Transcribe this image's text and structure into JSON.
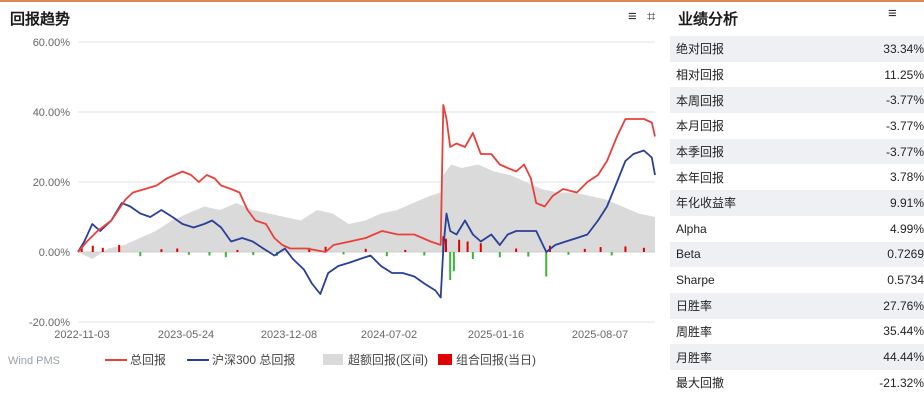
{
  "header": {
    "title": "回报趋势",
    "menu_icon": "menu-icon",
    "crop_icon": "crop-icon"
  },
  "footer": {
    "watermark": "Wind PMS"
  },
  "legend": [
    {
      "label": "总回报",
      "color": "#e8413c",
      "kind": "line"
    },
    {
      "label": "沪深300 总回报",
      "color": "#2a3f96",
      "kind": "line"
    },
    {
      "label": "超额回报(区间)",
      "color": "#dadada",
      "kind": "area"
    },
    {
      "label": "组合回报(当日)",
      "color": "#e00000",
      "kind": "box"
    }
  ],
  "chart_data": {
    "type": "line",
    "x_ticks": [
      "2022-11-03",
      "2023-05-24",
      "2023-12-08",
      "2024-07-02",
      "2025-01-16",
      "2025-08-07"
    ],
    "y_ticks": [
      "60.00%",
      "40.00%",
      "20.00%",
      "0.00%",
      "-20.00%"
    ],
    "ylim": [
      -20,
      60
    ],
    "xlim": [
      "2022-11-03",
      "2025-10-31"
    ],
    "grid": true,
    "legend_position": "bottom",
    "series": [
      {
        "name": "总回报",
        "color": "#e8413c",
        "points": [
          [
            "2022-11-03",
            0
          ],
          [
            "2022-11-20",
            3
          ],
          [
            "2022-12-10",
            6
          ],
          [
            "2023-01-05",
            9
          ],
          [
            "2023-02-01",
            15
          ],
          [
            "2023-02-15",
            17
          ],
          [
            "2023-03-10",
            18
          ],
          [
            "2023-04-01",
            19
          ],
          [
            "2023-04-20",
            21
          ],
          [
            "2023-05-05",
            22
          ],
          [
            "2023-05-20",
            23
          ],
          [
            "2023-06-05",
            22
          ],
          [
            "2023-06-20",
            20
          ],
          [
            "2023-07-05",
            22
          ],
          [
            "2023-07-20",
            21
          ],
          [
            "2023-08-01",
            19
          ],
          [
            "2023-08-20",
            18
          ],
          [
            "2023-09-05",
            17
          ],
          [
            "2023-09-20",
            12
          ],
          [
            "2023-10-05",
            9
          ],
          [
            "2023-10-25",
            8
          ],
          [
            "2023-11-10",
            4
          ],
          [
            "2023-11-25",
            2
          ],
          [
            "2023-12-10",
            1
          ],
          [
            "2024-01-10",
            1
          ],
          [
            "2024-02-15",
            0
          ],
          [
            "2024-03-01",
            2
          ],
          [
            "2024-04-01",
            3
          ],
          [
            "2024-05-01",
            4
          ],
          [
            "2024-06-01",
            6
          ],
          [
            "2024-07-01",
            5
          ],
          [
            "2024-08-01",
            5
          ],
          [
            "2024-09-01",
            3
          ],
          [
            "2024-09-20",
            2
          ],
          [
            "2024-09-25",
            42
          ],
          [
            "2024-10-01",
            38
          ],
          [
            "2024-10-08",
            30
          ],
          [
            "2024-10-20",
            31
          ],
          [
            "2024-11-05",
            30
          ],
          [
            "2024-11-20",
            34
          ],
          [
            "2024-12-05",
            28
          ],
          [
            "2024-12-25",
            28
          ],
          [
            "2025-01-10",
            25
          ],
          [
            "2025-01-25",
            24
          ],
          [
            "2025-02-10",
            23
          ],
          [
            "2025-02-25",
            25
          ],
          [
            "2025-03-10",
            21
          ],
          [
            "2025-03-20",
            14
          ],
          [
            "2025-04-05",
            13
          ],
          [
            "2025-04-20",
            16
          ],
          [
            "2025-05-10",
            18
          ],
          [
            "2025-06-05",
            17
          ],
          [
            "2025-06-25",
            20
          ],
          [
            "2025-07-15",
            22
          ],
          [
            "2025-08-01",
            26
          ],
          [
            "2025-08-20",
            33
          ],
          [
            "2025-09-05",
            38
          ],
          [
            "2025-09-20",
            38
          ],
          [
            "2025-10-10",
            38
          ],
          [
            "2025-10-25",
            37
          ],
          [
            "2025-10-31",
            33
          ]
        ]
      },
      {
        "name": "沪深300 总回报",
        "color": "#2a3f96",
        "points": [
          [
            "2022-11-03",
            0
          ],
          [
            "2022-11-15",
            3
          ],
          [
            "2022-11-30",
            8
          ],
          [
            "2022-12-15",
            6
          ],
          [
            "2023-01-05",
            9
          ],
          [
            "2023-01-25",
            14
          ],
          [
            "2023-02-10",
            13
          ],
          [
            "2023-03-01",
            11
          ],
          [
            "2023-03-20",
            10
          ],
          [
            "2023-04-10",
            12
          ],
          [
            "2023-05-01",
            10
          ],
          [
            "2023-05-20",
            8
          ],
          [
            "2023-06-10",
            7
          ],
          [
            "2023-06-30",
            8
          ],
          [
            "2023-07-15",
            9
          ],
          [
            "2023-08-01",
            7
          ],
          [
            "2023-08-20",
            3
          ],
          [
            "2023-09-10",
            4
          ],
          [
            "2023-09-30",
            3
          ],
          [
            "2023-10-20",
            1
          ],
          [
            "2023-11-10",
            -1
          ],
          [
            "2023-11-30",
            1
          ],
          [
            "2023-12-15",
            -2
          ],
          [
            "2024-01-05",
            -5
          ],
          [
            "2024-01-20",
            -9
          ],
          [
            "2024-02-05",
            -12
          ],
          [
            "2024-02-20",
            -6
          ],
          [
            "2024-03-10",
            -4
          ],
          [
            "2024-04-01",
            -3
          ],
          [
            "2024-04-20",
            -2
          ],
          [
            "2024-05-10",
            -1
          ],
          [
            "2024-05-30",
            -4
          ],
          [
            "2024-06-20",
            -6
          ],
          [
            "2024-07-10",
            -6
          ],
          [
            "2024-08-01",
            -7
          ],
          [
            "2024-08-20",
            -9
          ],
          [
            "2024-09-10",
            -11
          ],
          [
            "2024-09-20",
            -13
          ],
          [
            "2024-09-25",
            1
          ],
          [
            "2024-10-01",
            11
          ],
          [
            "2024-10-08",
            6
          ],
          [
            "2024-10-20",
            5
          ],
          [
            "2024-11-05",
            9
          ],
          [
            "2024-11-20",
            5
          ],
          [
            "2024-12-05",
            3
          ],
          [
            "2024-12-25",
            5
          ],
          [
            "2025-01-10",
            2
          ],
          [
            "2025-01-25",
            5
          ],
          [
            "2025-02-10",
            6
          ],
          [
            "2025-02-25",
            6
          ],
          [
            "2025-03-10",
            6
          ],
          [
            "2025-03-20",
            6
          ],
          [
            "2025-04-08",
            0
          ],
          [
            "2025-04-25",
            2
          ],
          [
            "2025-05-15",
            3
          ],
          [
            "2025-06-05",
            4
          ],
          [
            "2025-06-25",
            5
          ],
          [
            "2025-07-15",
            9
          ],
          [
            "2025-08-01",
            13
          ],
          [
            "2025-08-20",
            20
          ],
          [
            "2025-09-05",
            26
          ],
          [
            "2025-09-20",
            28
          ],
          [
            "2025-10-10",
            29
          ],
          [
            "2025-10-25",
            27
          ],
          [
            "2025-10-31",
            22
          ]
        ]
      },
      {
        "name": "超额回报(区间)",
        "color": "#dadada",
        "points": [
          [
            "2022-11-03",
            0
          ],
          [
            "2022-11-30",
            -2
          ],
          [
            "2022-12-30",
            1
          ],
          [
            "2023-01-30",
            2
          ],
          [
            "2023-02-28",
            4
          ],
          [
            "2023-03-30",
            6
          ],
          [
            "2023-04-30",
            9
          ],
          [
            "2023-05-30",
            11
          ],
          [
            "2023-06-30",
            13
          ],
          [
            "2023-07-30",
            12
          ],
          [
            "2023-08-30",
            14
          ],
          [
            "2023-09-30",
            12
          ],
          [
            "2023-10-30",
            11
          ],
          [
            "2023-11-30",
            10
          ],
          [
            "2023-12-30",
            9
          ],
          [
            "2024-01-30",
            12
          ],
          [
            "2024-02-28",
            11
          ],
          [
            "2024-03-30",
            8
          ],
          [
            "2024-04-30",
            9
          ],
          [
            "2024-05-30",
            11
          ],
          [
            "2024-06-30",
            12
          ],
          [
            "2024-07-30",
            14
          ],
          [
            "2024-08-30",
            16
          ],
          [
            "2024-09-20",
            17
          ],
          [
            "2024-09-25",
            22
          ],
          [
            "2024-10-10",
            25
          ],
          [
            "2024-10-30",
            24
          ],
          [
            "2024-11-30",
            25
          ],
          [
            "2024-12-30",
            23
          ],
          [
            "2025-01-30",
            22
          ],
          [
            "2025-02-28",
            20
          ],
          [
            "2025-03-30",
            18
          ],
          [
            "2025-04-30",
            17
          ],
          [
            "2025-05-30",
            17
          ],
          [
            "2025-06-30",
            16
          ],
          [
            "2025-07-30",
            15
          ],
          [
            "2025-08-30",
            13
          ],
          [
            "2025-09-30",
            11
          ],
          [
            "2025-10-31",
            10
          ]
        ]
      },
      {
        "name": "组合回报(当日)",
        "color": "#e00000",
        "color_negative": "#3cb43c",
        "kind": "bar",
        "points": [
          [
            "2022-11-10",
            1.6
          ],
          [
            "2022-12-01",
            1.8
          ],
          [
            "2022-12-20",
            1.2
          ],
          [
            "2023-01-20",
            2.0
          ],
          [
            "2023-03-01",
            -1.2
          ],
          [
            "2023-04-10",
            0.8
          ],
          [
            "2023-05-10",
            1.0
          ],
          [
            "2023-06-01",
            -0.8
          ],
          [
            "2023-07-10",
            -1.0
          ],
          [
            "2023-08-10",
            -1.5
          ],
          [
            "2023-09-01",
            0.6
          ],
          [
            "2023-10-01",
            -0.9
          ],
          [
            "2023-11-15",
            -1.1
          ],
          [
            "2024-01-15",
            1.2
          ],
          [
            "2024-02-15",
            1.5
          ],
          [
            "2024-03-20",
            -0.7
          ],
          [
            "2024-05-01",
            0.9
          ],
          [
            "2024-06-10",
            -1.2
          ],
          [
            "2024-07-15",
            0.6
          ],
          [
            "2024-08-20",
            -1.0
          ],
          [
            "2024-09-25",
            4.5
          ],
          [
            "2024-09-30",
            3.8
          ],
          [
            "2024-10-08",
            -8.0
          ],
          [
            "2024-10-15",
            -5.5
          ],
          [
            "2024-10-25",
            3.5
          ],
          [
            "2024-11-10",
            3.0
          ],
          [
            "2024-11-20",
            -2.0
          ],
          [
            "2024-12-05",
            2.5
          ],
          [
            "2025-01-10",
            -1.5
          ],
          [
            "2025-02-10",
            1.0
          ],
          [
            "2025-03-05",
            -1.3
          ],
          [
            "2025-04-08",
            -7.0
          ],
          [
            "2025-04-15",
            1.8
          ],
          [
            "2025-05-20",
            -0.8
          ],
          [
            "2025-06-20",
            0.9
          ],
          [
            "2025-07-20",
            1.4
          ],
          [
            "2025-08-10",
            -1.0
          ],
          [
            "2025-09-05",
            1.6
          ],
          [
            "2025-10-10",
            1.2
          ]
        ]
      }
    ]
  },
  "performance": {
    "title": "业绩分析",
    "menu_icon": "menu-icon",
    "rows": [
      {
        "label": "绝对回报",
        "value": "33.34%"
      },
      {
        "label": "相对回报",
        "value": "11.25%"
      },
      {
        "label": "本周回报",
        "value": "-3.77%"
      },
      {
        "label": "本月回报",
        "value": "-3.77%"
      },
      {
        "label": "本季回报",
        "value": "-3.77%"
      },
      {
        "label": "本年回报",
        "value": "3.78%"
      },
      {
        "label": "年化收益率",
        "value": "9.91%"
      },
      {
        "label": "Alpha",
        "value": "4.99%"
      },
      {
        "label": "Beta",
        "value": "0.7269"
      },
      {
        "label": "Sharpe",
        "value": "0.5734"
      },
      {
        "label": "日胜率",
        "value": "27.76%"
      },
      {
        "label": "周胜率",
        "value": "35.44%"
      },
      {
        "label": "月胜率",
        "value": "44.44%"
      },
      {
        "label": "最大回撤",
        "value": "-21.32%"
      }
    ]
  }
}
